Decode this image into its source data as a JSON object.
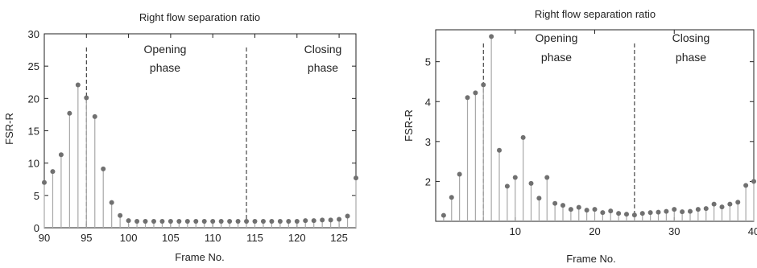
{
  "chart_data": [
    {
      "type": "stem",
      "title": "Right flow separation ratio",
      "xlabel": "Frame No.",
      "ylabel": "FSR-R",
      "xlim": [
        90,
        127
      ],
      "ylim": [
        0,
        30
      ],
      "xticks": [
        90,
        95,
        100,
        105,
        110,
        115,
        120,
        125
      ],
      "yticks": [
        0,
        5,
        10,
        15,
        20,
        25,
        30
      ],
      "x": [
        90,
        91,
        92,
        93,
        94,
        95,
        96,
        97,
        98,
        99,
        100,
        101,
        102,
        103,
        104,
        105,
        106,
        107,
        108,
        109,
        110,
        111,
        112,
        113,
        114,
        115,
        116,
        117,
        118,
        119,
        120,
        121,
        122,
        123,
        124,
        125,
        126,
        127
      ],
      "y": [
        7.0,
        8.7,
        11.3,
        17.7,
        22.1,
        20.1,
        17.2,
        9.1,
        3.9,
        1.9,
        1.1,
        1.0,
        1.0,
        1.0,
        1.0,
        1.0,
        1.0,
        1.0,
        1.0,
        1.0,
        1.0,
        1.0,
        1.0,
        1.0,
        1.0,
        1.0,
        1.0,
        1.0,
        1.0,
        1.0,
        1.0,
        1.1,
        1.1,
        1.2,
        1.2,
        1.3,
        1.8,
        7.7
      ],
      "phase_dividers": [
        95,
        114
      ],
      "phases": [
        {
          "line1": "Opening",
          "line2": "phase"
        },
        {
          "line1": "Closing",
          "line2": "phase"
        }
      ],
      "grid": false,
      "legend": "none"
    },
    {
      "type": "stem",
      "title": "Right flow separation ratio",
      "xlabel": "Frame No.",
      "ylabel": "FSR-R",
      "xlim": [
        0,
        40
      ],
      "ylim": [
        1,
        5.8
      ],
      "xticks": [
        10,
        20,
        30,
        40
      ],
      "yticks": [
        2,
        3,
        4,
        5
      ],
      "x": [
        1,
        2,
        3,
        4,
        5,
        6,
        7,
        8,
        9,
        10,
        11,
        12,
        13,
        14,
        15,
        16,
        17,
        18,
        19,
        20,
        21,
        22,
        23,
        24,
        25,
        26,
        27,
        28,
        29,
        30,
        31,
        32,
        33,
        34,
        35,
        36,
        37,
        38,
        39,
        40
      ],
      "y": [
        1.15,
        1.6,
        2.18,
        4.1,
        4.22,
        4.42,
        5.63,
        2.78,
        1.88,
        2.1,
        3.1,
        1.95,
        1.58,
        2.1,
        1.45,
        1.4,
        1.3,
        1.35,
        1.28,
        1.3,
        1.22,
        1.26,
        1.2,
        1.18,
        1.16,
        1.2,
        1.22,
        1.23,
        1.25,
        1.3,
        1.24,
        1.25,
        1.3,
        1.32,
        1.43,
        1.36,
        1.43,
        1.48,
        1.9,
        2.0
      ],
      "phase_dividers": [
        6,
        25
      ],
      "phases": [
        {
          "line1": "Opening",
          "line2": "phase"
        },
        {
          "line1": "Closing",
          "line2": "phase"
        }
      ],
      "grid": false,
      "legend": "none"
    }
  ]
}
